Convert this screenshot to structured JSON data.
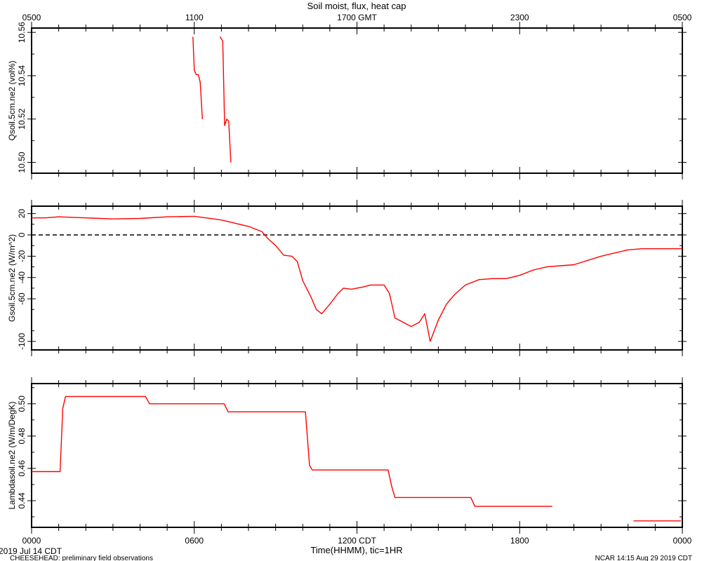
{
  "title": "Soil moist, flux, heat cap",
  "top_axis": {
    "ticks": [
      "0500",
      "1100",
      "1700 GMT",
      "2300",
      "0500"
    ]
  },
  "bottom_axis": {
    "ticks": [
      "0000",
      "0600",
      "1200 CDT",
      "1800",
      "0000"
    ],
    "label": "Time(HHMM), tic=1HR",
    "date": "2019 Jul 14 CDT"
  },
  "footer": {
    "left": "CHEESEHEAD: preliminary field observations",
    "right": "NCAR 14:15 Aug 29 2019 CDT"
  },
  "colors": {
    "trace": "#ff0000",
    "axes": "#000000"
  },
  "chart_data": [
    {
      "type": "line",
      "ylabel": "Qsoil.5cm.ne2 (vol%)",
      "xlim": [
        0,
        24
      ],
      "ylim": [
        10.495,
        10.562
      ],
      "yticks": [
        10.5,
        10.52,
        10.54,
        10.56
      ],
      "ytick_labels": [
        "10.50",
        "10.52",
        "10.54",
        "10.56"
      ],
      "zero_line": false,
      "segments": [
        [
          [
            5.95,
            10.558
          ],
          [
            6.0,
            10.5425
          ],
          [
            6.07,
            10.5405
          ],
          [
            6.15,
            10.5405
          ],
          [
            6.22,
            10.537
          ],
          [
            6.3,
            10.52
          ]
        ],
        [
          [
            6.95,
            10.558
          ],
          [
            7.05,
            10.556
          ],
          [
            7.12,
            10.517
          ],
          [
            7.2,
            10.52
          ],
          [
            7.27,
            10.519
          ],
          [
            7.35,
            10.5
          ]
        ]
      ]
    },
    {
      "type": "line",
      "ylabel": "Gsoil.5cm.ne2 (W/m^2)",
      "xlim": [
        0,
        24
      ],
      "ylim": [
        -108,
        27
      ],
      "yticks": [
        20,
        0,
        -20,
        -40,
        -60,
        -100
      ],
      "ytick_labels": [
        "20",
        "0",
        "-20",
        "-40",
        "-60",
        "-100"
      ],
      "zero_line": true,
      "segments": [
        [
          [
            0,
            16
          ],
          [
            0.5,
            16
          ],
          [
            1.0,
            17
          ],
          [
            2.0,
            16
          ],
          [
            3.0,
            15
          ],
          [
            4.0,
            15.5
          ],
          [
            5.0,
            17
          ],
          [
            6.0,
            17.5
          ],
          [
            7.0,
            14
          ],
          [
            8.0,
            8
          ],
          [
            8.5,
            3
          ],
          [
            8.7,
            -3
          ],
          [
            9.0,
            -10
          ],
          [
            9.3,
            -19
          ],
          [
            9.6,
            -20
          ],
          [
            9.8,
            -25
          ],
          [
            10.0,
            -43
          ],
          [
            10.3,
            -58
          ],
          [
            10.5,
            -70
          ],
          [
            10.7,
            -74
          ],
          [
            11.0,
            -65
          ],
          [
            11.3,
            -55
          ],
          [
            11.5,
            -50
          ],
          [
            11.8,
            -51
          ],
          [
            12.2,
            -49
          ],
          [
            12.5,
            -47
          ],
          [
            13.0,
            -47
          ],
          [
            13.2,
            -55
          ],
          [
            13.4,
            -78
          ],
          [
            13.7,
            -82
          ],
          [
            14.0,
            -86
          ],
          [
            14.3,
            -82
          ],
          [
            14.5,
            -74
          ],
          [
            14.7,
            -100
          ],
          [
            15.0,
            -80
          ],
          [
            15.3,
            -65
          ],
          [
            15.6,
            -56
          ],
          [
            16.0,
            -47
          ],
          [
            16.5,
            -42
          ],
          [
            17.0,
            -41
          ],
          [
            17.5,
            -41
          ],
          [
            18.0,
            -38
          ],
          [
            18.5,
            -33
          ],
          [
            19.0,
            -30
          ],
          [
            19.5,
            -29
          ],
          [
            20.0,
            -28
          ],
          [
            20.5,
            -24
          ],
          [
            21.0,
            -20
          ],
          [
            21.5,
            -17
          ],
          [
            22.0,
            -14
          ],
          [
            22.5,
            -13
          ],
          [
            23.0,
            -13
          ],
          [
            23.5,
            -13
          ],
          [
            24.0,
            -13
          ]
        ]
      ]
    },
    {
      "type": "line",
      "ylabel": "Lambdasoil.ne2 (W/m/DegK)",
      "xlim": [
        0,
        24
      ],
      "ylim": [
        0.4235,
        0.5125
      ],
      "yticks": [
        0.44,
        0.46,
        0.48,
        0.5
      ],
      "ytick_labels": [
        "0.44",
        "0.46",
        "0.48",
        "0.50"
      ],
      "zero_line": false,
      "segments": [
        [
          [
            0,
            0.458
          ],
          [
            1.05,
            0.458
          ],
          [
            1.15,
            0.497
          ],
          [
            1.25,
            0.5045
          ],
          [
            4.2,
            0.5045
          ],
          [
            4.35,
            0.5
          ],
          [
            7.1,
            0.5
          ],
          [
            7.25,
            0.495
          ],
          [
            10.1,
            0.495
          ],
          [
            10.25,
            0.462
          ],
          [
            10.35,
            0.459
          ],
          [
            13.15,
            0.459
          ],
          [
            13.28,
            0.449
          ],
          [
            13.4,
            0.442
          ],
          [
            16.2,
            0.442
          ],
          [
            16.35,
            0.4365
          ],
          [
            19.2,
            0.4365
          ]
        ],
        [
          [
            22.2,
            0.4275
          ],
          [
            23.95,
            0.4275
          ]
        ]
      ]
    }
  ]
}
